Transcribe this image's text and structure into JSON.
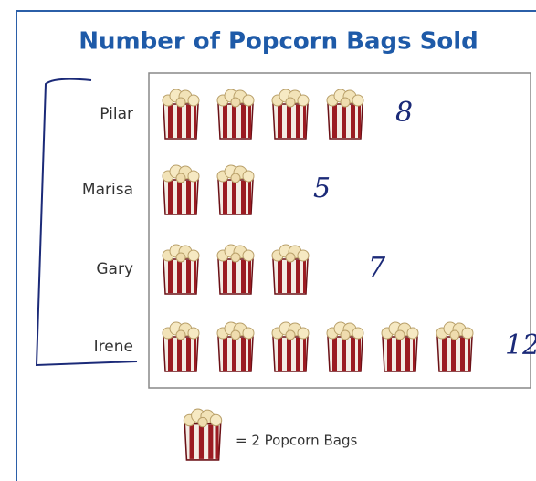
{
  "chart_data": {
    "type": "pictograph",
    "title": "Number of Popcorn Bags Sold",
    "categories": [
      "Pilar",
      "Marisa",
      "Gary",
      "Irene"
    ],
    "values": [
      8,
      5,
      7,
      12
    ],
    "value_labels": [
      "8",
      "5",
      "7",
      "12"
    ],
    "key": {
      "value": 2,
      "label": "= 2 Popcorn Bags"
    },
    "color": "#9b1b22"
  }
}
